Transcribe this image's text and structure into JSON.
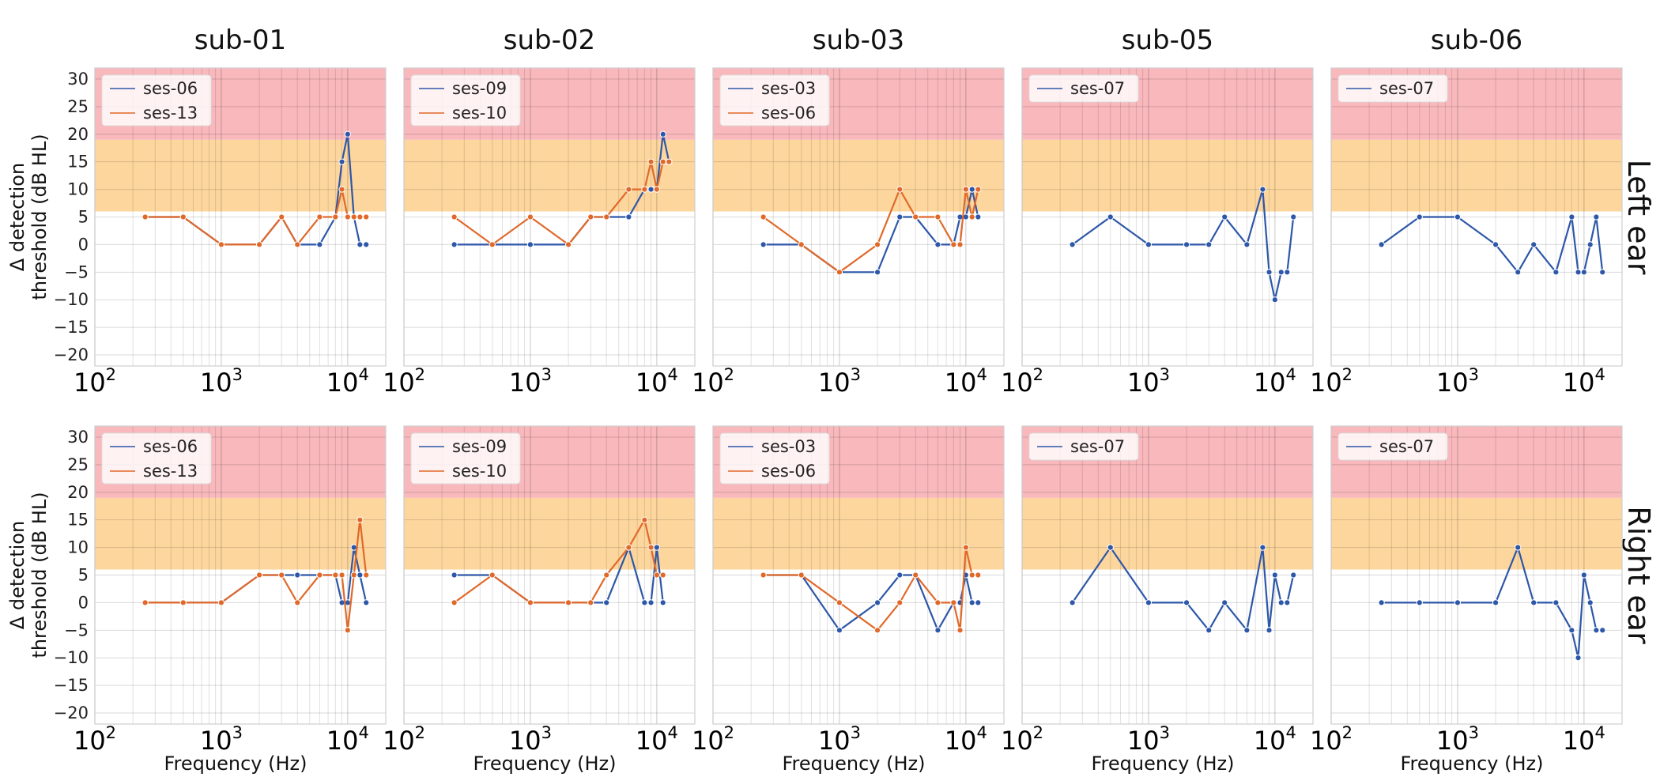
{
  "chart_data": {
    "type": "line",
    "x_scale": "log",
    "xlim": [
      100,
      20000
    ],
    "ylim": [
      -22,
      32
    ],
    "xticks": [
      100,
      1000,
      10000
    ],
    "xtick_labels": [
      {
        "base": "10",
        "exp": "2"
      },
      {
        "base": "10",
        "exp": "3"
      },
      {
        "base": "10",
        "exp": "4"
      }
    ],
    "yticks": [
      -20,
      -15,
      -10,
      -5,
      0,
      5,
      10,
      15,
      20,
      25,
      30
    ],
    "ytick_labels": [
      "−20",
      "−15",
      "−10",
      "−5",
      "0",
      "5",
      "10",
      "15",
      "20",
      "25",
      "30"
    ],
    "grid": true,
    "legend_location": "top-left",
    "bands": [
      {
        "y0": 6,
        "y1": 19,
        "color": "#fdd69d"
      },
      {
        "y0": 19,
        "y1": 32,
        "color": "#f8b8bc"
      }
    ],
    "colors": {
      "series_1": "#2d57a8",
      "series_2": "#e0692a"
    },
    "columns": [
      "sub-01",
      "sub-02",
      "sub-03",
      "sub-05",
      "sub-06"
    ],
    "rows": [
      "Left ear",
      "Right ear"
    ],
    "ylabel_line1": "Δ detection",
    "ylabel_line2": "threshold (dB HL)",
    "xlabel": "Frequency (Hz)",
    "x": [
      250,
      500,
      1000,
      2000,
      3000,
      4000,
      6000,
      8000,
      9000,
      10000,
      11200,
      12500,
      14000,
      16000
    ],
    "panels": [
      {
        "row": 0,
        "col": 0,
        "series": [
          {
            "name": "ses-06",
            "y": [
              5,
              5,
              0,
              0,
              5,
              0,
              0,
              5,
              15,
              20,
              5,
              0,
              0,
              null
            ]
          },
          {
            "name": "ses-13",
            "y": [
              5,
              5,
              0,
              0,
              5,
              0,
              5,
              5,
              10,
              5,
              5,
              5,
              5,
              null
            ]
          }
        ]
      },
      {
        "row": 0,
        "col": 1,
        "series": [
          {
            "name": "ses-09",
            "y": [
              0,
              0,
              0,
              0,
              5,
              5,
              5,
              10,
              10,
              10,
              20,
              15,
              null,
              null
            ]
          },
          {
            "name": "ses-10",
            "y": [
              5,
              0,
              5,
              0,
              5,
              5,
              10,
              10,
              15,
              10,
              15,
              15,
              null,
              null
            ]
          }
        ]
      },
      {
        "row": 0,
        "col": 2,
        "series": [
          {
            "name": "ses-03",
            "y": [
              0,
              0,
              -5,
              -5,
              5,
              5,
              0,
              0,
              5,
              5,
              10,
              5,
              null,
              null
            ]
          },
          {
            "name": "ses-06",
            "y": [
              5,
              0,
              -5,
              0,
              10,
              5,
              5,
              0,
              0,
              10,
              5,
              10,
              null,
              null
            ]
          }
        ]
      },
      {
        "row": 0,
        "col": 3,
        "series": [
          {
            "name": "ses-07",
            "y": [
              0,
              5,
              0,
              0,
              0,
              5,
              0,
              10,
              -5,
              -10,
              -5,
              -5,
              5,
              null
            ]
          }
        ]
      },
      {
        "row": 0,
        "col": 4,
        "series": [
          {
            "name": "ses-07",
            "y": [
              0,
              5,
              5,
              0,
              -5,
              0,
              -5,
              5,
              -5,
              -5,
              0,
              5,
              -5,
              null
            ]
          }
        ]
      },
      {
        "row": 1,
        "col": 0,
        "series": [
          {
            "name": "ses-06",
            "y": [
              0,
              0,
              0,
              5,
              5,
              5,
              5,
              5,
              0,
              0,
              10,
              5,
              0,
              null
            ]
          },
          {
            "name": "ses-13",
            "y": [
              0,
              0,
              0,
              5,
              5,
              0,
              5,
              5,
              5,
              -5,
              5,
              15,
              5,
              null
            ]
          }
        ]
      },
      {
        "row": 1,
        "col": 1,
        "series": [
          {
            "name": "ses-09",
            "y": [
              5,
              5,
              0,
              0,
              0,
              0,
              10,
              0,
              0,
              10,
              0,
              null,
              null,
              null
            ]
          },
          {
            "name": "ses-10",
            "y": [
              0,
              5,
              0,
              0,
              0,
              5,
              10,
              15,
              10,
              5,
              5,
              null,
              null,
              null
            ]
          }
        ]
      },
      {
        "row": 1,
        "col": 2,
        "series": [
          {
            "name": "ses-03",
            "y": [
              5,
              5,
              -5,
              0,
              5,
              5,
              -5,
              0,
              0,
              5,
              0,
              0,
              null,
              null
            ]
          },
          {
            "name": "ses-06",
            "y": [
              5,
              5,
              0,
              -5,
              0,
              5,
              0,
              0,
              -5,
              10,
              5,
              5,
              null,
              null
            ]
          }
        ]
      },
      {
        "row": 1,
        "col": 3,
        "series": [
          {
            "name": "ses-07",
            "y": [
              0,
              10,
              0,
              0,
              -5,
              0,
              -5,
              10,
              -5,
              5,
              0,
              0,
              5,
              null
            ]
          }
        ]
      },
      {
        "row": 1,
        "col": 4,
        "series": [
          {
            "name": "ses-07",
            "y": [
              0,
              0,
              0,
              0,
              10,
              0,
              0,
              -5,
              -10,
              5,
              0,
              -5,
              -5,
              null
            ]
          }
        ]
      }
    ]
  }
}
